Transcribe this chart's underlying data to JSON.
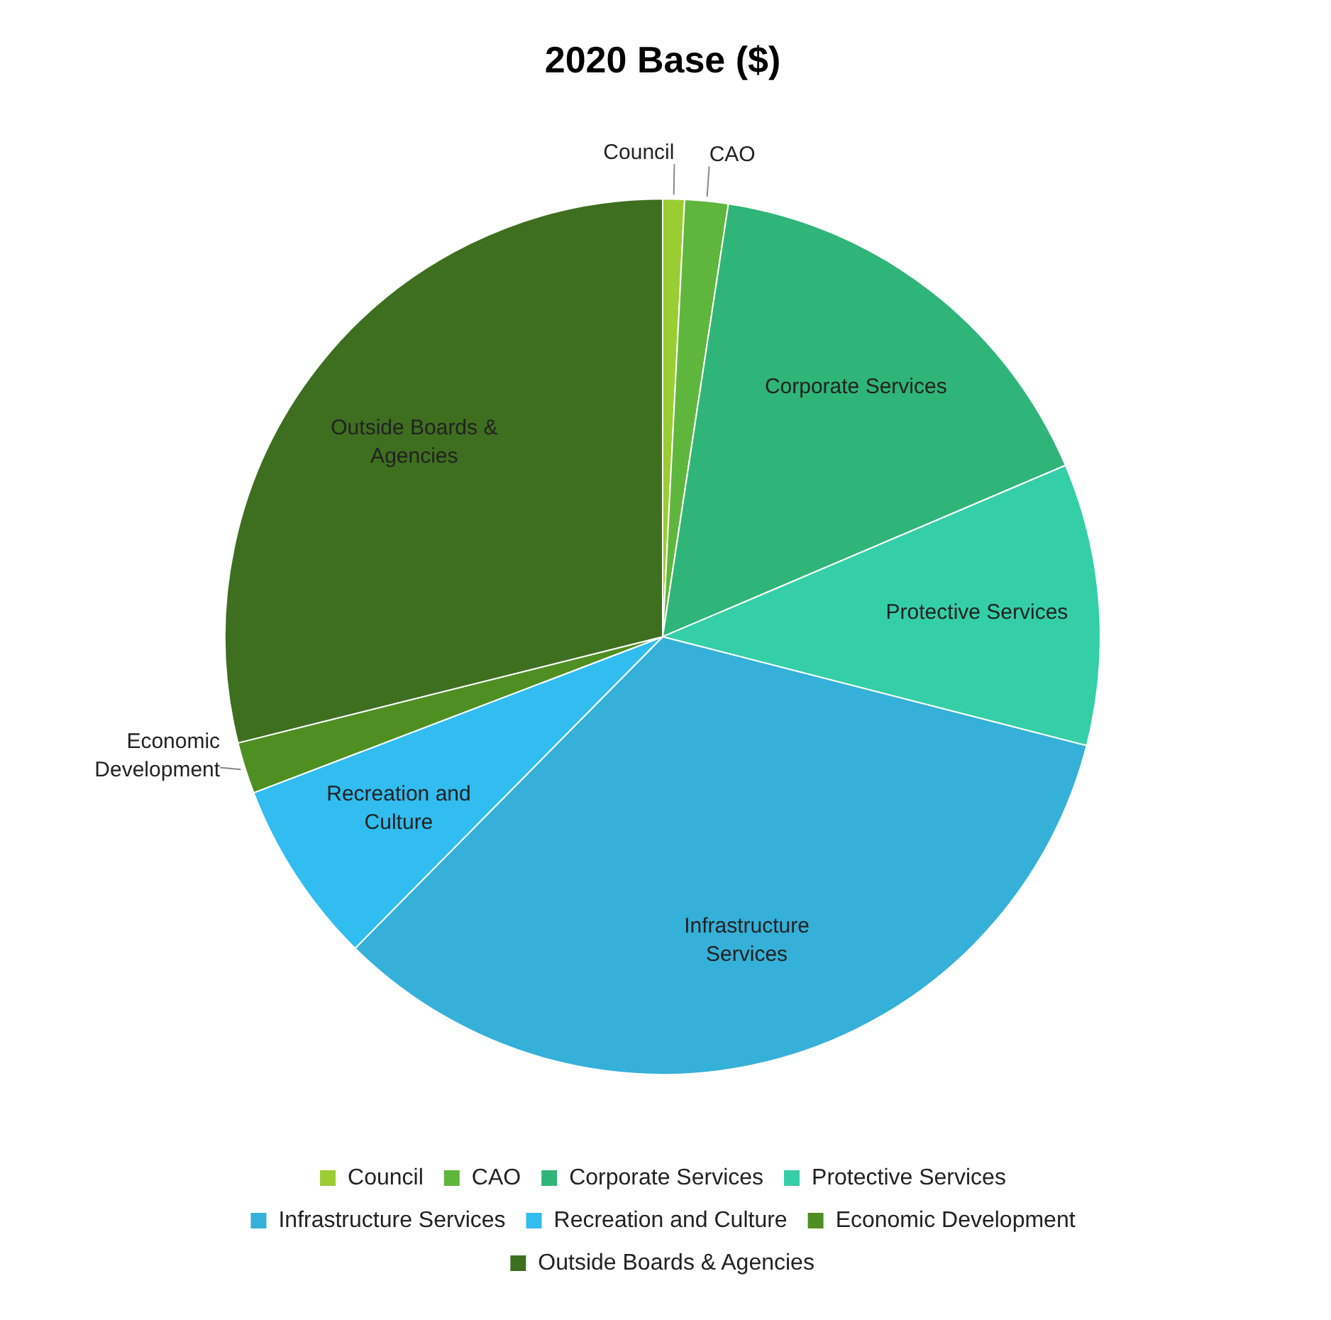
{
  "chart_data": {
    "type": "pie",
    "title": "2020 Base ($)",
    "categories": [
      "Council",
      "CAO",
      "Corporate Services",
      "Protective Services",
      "Infrastructure Services",
      "Recreation and Culture",
      "Economic Development",
      "Outside Boards & Agencies"
    ],
    "values": [
      0.8,
      1.6,
      16.2,
      10.4,
      33.4,
      6.8,
      1.9,
      28.9
    ],
    "colors": [
      "#9acd32",
      "#5fb63c",
      "#2fb577",
      "#34cfa6",
      "#35b0d8",
      "#31bdf0",
      "#4f8f22",
      "#3d6f1f"
    ],
    "legend": "bottom"
  }
}
